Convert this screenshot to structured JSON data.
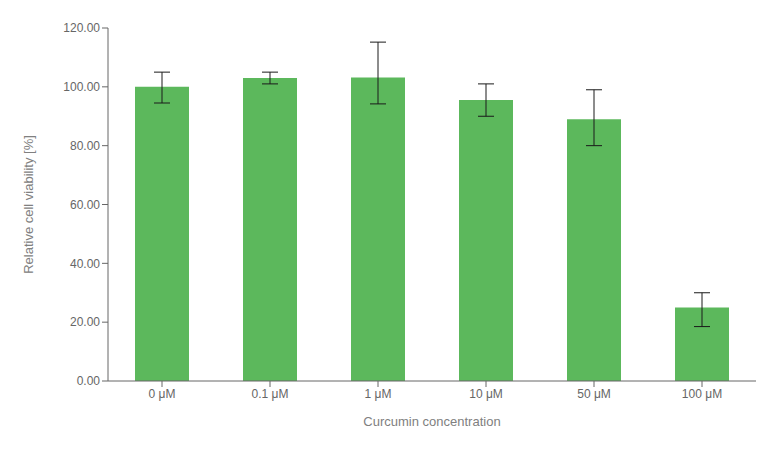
{
  "chart_data": {
    "type": "bar",
    "categories": [
      "0 μM",
      "0.1 μM",
      "1 μM",
      "10 μM",
      "50 μM",
      "100 μM"
    ],
    "values": [
      100.0,
      103.0,
      103.2,
      95.5,
      89.0,
      25.0
    ],
    "errors_upper": [
      5.0,
      2.0,
      12.0,
      5.5,
      10.0,
      5.0
    ],
    "errors_lower": [
      5.5,
      2.0,
      9.0,
      5.5,
      9.0,
      6.5
    ],
    "color": "#5cb85c",
    "xlabel": "Curcumin concentration",
    "ylabel": "Relative cell viability [%]",
    "ylim": [
      0,
      120
    ],
    "yticks": [
      {
        "value": 0,
        "label": "0.00"
      },
      {
        "value": 20.0,
        "label": "20.00"
      },
      {
        "value": 40.0,
        "label": "40.00"
      },
      {
        "value": 60.0,
        "label": "60.00"
      },
      {
        "value": 80.0,
        "label": "80.00"
      },
      {
        "value": 100.0,
        "label": "100.00"
      },
      {
        "value": 120.0,
        "label": "120.00"
      }
    ],
    "grid": false
  }
}
